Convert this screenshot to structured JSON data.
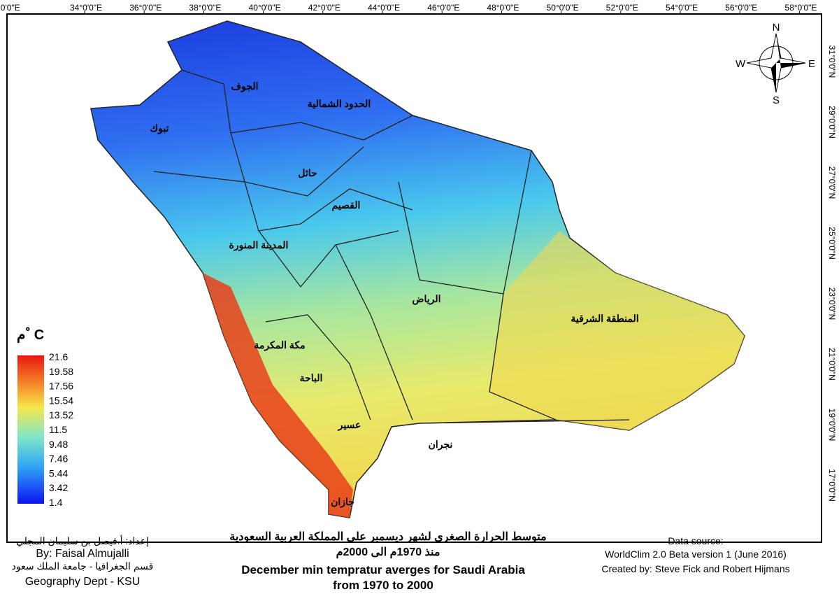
{
  "graticule": {
    "top": [
      "°0'0\"E",
      "34°0'0\"E",
      "36°0'0\"E",
      "38°0'0\"E",
      "40°0'0\"E",
      "42°0'0\"E",
      "44°0'0\"E",
      "46°0'0\"E",
      "48°0'0\"E",
      "50°0'0\"E",
      "52°0'0\"E",
      "54°0'0\"E",
      "56°0'0\"E",
      "58°0'0\"E"
    ],
    "right": [
      "31°0'0\"N",
      "29°0'0\"N",
      "27°0'0\"N",
      "25°0'0\"N",
      "23°0'0\"N",
      "21°0'0\"N",
      "19°0'0\"N",
      "17°0'0\"N"
    ]
  },
  "compass": {
    "north": "N",
    "east": "E",
    "south": "S",
    "west": "W"
  },
  "regions": [
    "الجوف",
    "الحدود الشمالية",
    "تبوك",
    "حائل",
    "القصيم",
    "المدينة المنورة",
    "الرياض",
    "المنطقة الشرقية",
    "مكة المكرمة",
    "الباحة",
    "عسير",
    "نجران",
    "جازان"
  ],
  "legend": {
    "title": "م ْ C",
    "ticks": [
      21.6,
      19.58,
      17.56,
      15.54,
      13.52,
      11.5,
      9.48,
      7.46,
      5.44,
      3.42,
      1.4
    ]
  },
  "credits_left": [
    "إعداد: أ.فيصل بن سليمان المجلي",
    "By: Faisal Almujalli",
    "قسم الجغرافيا - جامعة الملك سعود",
    "Geography Dept - KSU"
  ],
  "title": {
    "arabic_1": "متوسط الحرارة الصغرى لشهر ديسمبر على المملكة العربية السعودية",
    "arabic_2": "منذ 1970م الى 2000م",
    "english_1": "December min tempratur averges for Saudi Arabia",
    "english_2": "from 1970 to 2000"
  },
  "credits_right": [
    "Data source:",
    "WorldClim 2.0 Beta version 1 (June 2016)",
    "Created by: Steve Fick and Robert Hijmans"
  ]
}
